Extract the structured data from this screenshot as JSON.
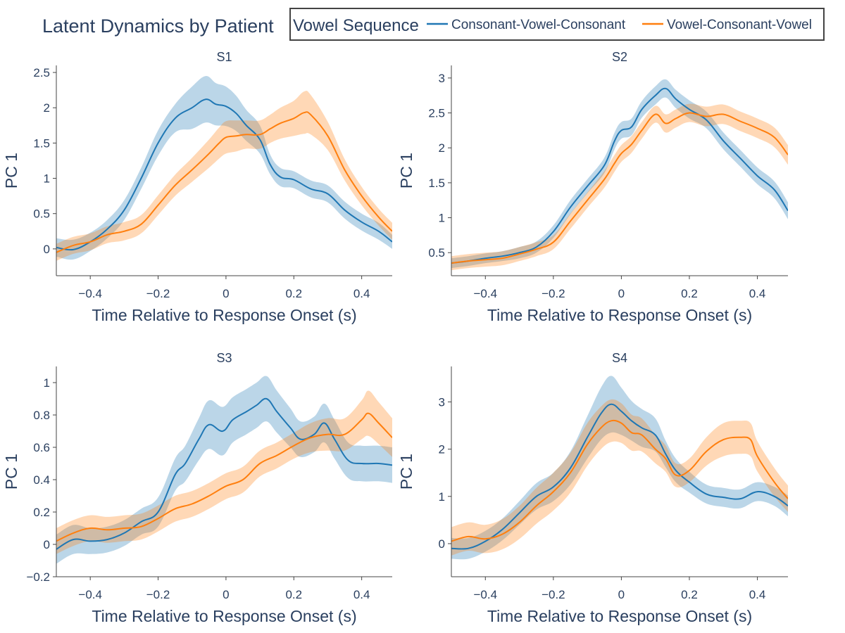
{
  "title": "Latent Dynamics by Patient",
  "legend": {
    "title": "Vowel Sequence",
    "placement": "top-right",
    "border": true
  },
  "colors": {
    "cvc": "#1f77b4",
    "vcv": "#ff7f0e",
    "cvc_band": "#1f77b4",
    "vcv_band": "#ff7f0e",
    "text": "#2a3f5f",
    "axis": "#444444"
  },
  "chart_data": [
    {
      "type": "line",
      "title": "S1",
      "xlabel": "Time Relative to Response Onset (s)",
      "ylabel": "PC 1",
      "xlim": [
        -0.5,
        0.49
      ],
      "ylim": [
        -0.38,
        2.6
      ],
      "xticks": [
        -0.4,
        -0.2,
        0,
        0.2,
        0.4
      ],
      "yticks": [
        0,
        0.5,
        1,
        1.5,
        2,
        2.5
      ],
      "grid": false,
      "series": [
        {
          "name": "Consonant-Vowel-Consonant",
          "x": [
            -0.5,
            -0.45,
            -0.4,
            -0.35,
            -0.3,
            -0.25,
            -0.2,
            -0.15,
            -0.1,
            -0.06,
            -0.03,
            0,
            0.03,
            0.06,
            0.1,
            0.13,
            0.16,
            0.2,
            0.25,
            0.3,
            0.35,
            0.4,
            0.45,
            0.49
          ],
          "y": [
            0.02,
            -0.01,
            0.1,
            0.28,
            0.55,
            1.0,
            1.5,
            1.85,
            2.0,
            2.12,
            2.05,
            2.02,
            1.92,
            1.75,
            1.55,
            1.2,
            1.02,
            0.98,
            0.85,
            0.78,
            0.55,
            0.38,
            0.25,
            0.1
          ],
          "band": [
            0.13,
            0.14,
            0.13,
            0.13,
            0.14,
            0.15,
            0.18,
            0.2,
            0.3,
            0.33,
            0.3,
            0.28,
            0.25,
            0.22,
            0.2,
            0.14,
            0.13,
            0.12,
            0.12,
            0.12,
            0.12,
            0.12,
            0.12,
            0.1
          ]
        },
        {
          "name": "Vowel-Consonant-Vowel",
          "x": [
            -0.5,
            -0.45,
            -0.4,
            -0.35,
            -0.3,
            -0.25,
            -0.2,
            -0.15,
            -0.1,
            -0.05,
            -0.02,
            0,
            0.03,
            0.06,
            0.1,
            0.13,
            0.16,
            0.2,
            0.23,
            0.25,
            0.3,
            0.35,
            0.4,
            0.45,
            0.49
          ],
          "y": [
            -0.05,
            0.05,
            0.1,
            0.2,
            0.25,
            0.35,
            0.62,
            0.9,
            1.12,
            1.35,
            1.5,
            1.58,
            1.6,
            1.62,
            1.62,
            1.7,
            1.78,
            1.85,
            1.93,
            1.9,
            1.6,
            1.12,
            0.75,
            0.45,
            0.25
          ],
          "band": [
            0.12,
            0.12,
            0.12,
            0.12,
            0.13,
            0.13,
            0.14,
            0.15,
            0.17,
            0.2,
            0.22,
            0.23,
            0.22,
            0.2,
            0.2,
            0.2,
            0.22,
            0.25,
            0.3,
            0.28,
            0.2,
            0.15,
            0.13,
            0.12,
            0.12
          ]
        }
      ]
    },
    {
      "type": "line",
      "title": "S2",
      "xlabel": "Time Relative to Response Onset (s)",
      "ylabel": "PC 1",
      "xlim": [
        -0.5,
        0.49
      ],
      "ylim": [
        0.17,
        3.18
      ],
      "xticks": [
        -0.4,
        -0.2,
        0,
        0.2,
        0.4
      ],
      "yticks": [
        0.5,
        1,
        1.5,
        2,
        2.5,
        3
      ],
      "grid": false,
      "series": [
        {
          "name": "Consonant-Vowel-Consonant",
          "x": [
            -0.5,
            -0.45,
            -0.4,
            -0.35,
            -0.3,
            -0.25,
            -0.2,
            -0.15,
            -0.1,
            -0.05,
            -0.02,
            0,
            0.03,
            0.06,
            0.1,
            0.13,
            0.16,
            0.2,
            0.25,
            0.3,
            0.35,
            0.4,
            0.45,
            0.49
          ],
          "y": [
            0.35,
            0.38,
            0.42,
            0.45,
            0.5,
            0.58,
            0.8,
            1.15,
            1.45,
            1.75,
            2.1,
            2.25,
            2.3,
            2.55,
            2.75,
            2.85,
            2.7,
            2.55,
            2.4,
            2.1,
            1.85,
            1.6,
            1.4,
            1.1
          ],
          "band": [
            0.07,
            0.07,
            0.07,
            0.07,
            0.08,
            0.08,
            0.09,
            0.1,
            0.1,
            0.11,
            0.12,
            0.12,
            0.12,
            0.12,
            0.13,
            0.13,
            0.13,
            0.13,
            0.12,
            0.12,
            0.12,
            0.12,
            0.12,
            0.12
          ]
        },
        {
          "name": "Vowel-Consonant-Vowel",
          "x": [
            -0.5,
            -0.45,
            -0.4,
            -0.35,
            -0.3,
            -0.25,
            -0.2,
            -0.15,
            -0.1,
            -0.05,
            -0.02,
            0,
            0.03,
            0.06,
            0.1,
            0.13,
            0.16,
            0.2,
            0.25,
            0.3,
            0.35,
            0.4,
            0.45,
            0.49
          ],
          "y": [
            0.35,
            0.38,
            0.4,
            0.42,
            0.48,
            0.55,
            0.65,
            0.95,
            1.25,
            1.55,
            1.78,
            1.92,
            2.05,
            2.25,
            2.48,
            2.35,
            2.42,
            2.5,
            2.45,
            2.48,
            2.38,
            2.28,
            2.15,
            1.9
          ],
          "band": [
            0.1,
            0.1,
            0.1,
            0.1,
            0.1,
            0.1,
            0.1,
            0.11,
            0.11,
            0.12,
            0.12,
            0.12,
            0.12,
            0.12,
            0.12,
            0.13,
            0.13,
            0.13,
            0.14,
            0.14,
            0.14,
            0.14,
            0.14,
            0.14
          ]
        }
      ]
    },
    {
      "type": "line",
      "title": "S3",
      "xlabel": "Time Relative to Response Onset (s)",
      "ylabel": "PC 1",
      "xlim": [
        -0.5,
        0.49
      ],
      "ylim": [
        -0.2,
        1.1
      ],
      "xticks": [
        -0.4,
        -0.2,
        0,
        0.2,
        0.4
      ],
      "yticks": [
        -0.2,
        0,
        0.2,
        0.4,
        0.6,
        0.8,
        1
      ],
      "grid": false,
      "series": [
        {
          "name": "Consonant-Vowel-Consonant",
          "x": [
            -0.5,
            -0.45,
            -0.4,
            -0.35,
            -0.3,
            -0.25,
            -0.2,
            -0.15,
            -0.12,
            -0.08,
            -0.05,
            -0.01,
            0.02,
            0.06,
            0.09,
            0.12,
            0.15,
            0.19,
            0.22,
            0.26,
            0.29,
            0.32,
            0.36,
            0.4,
            0.45,
            0.49
          ],
          "y": [
            -0.03,
            0.03,
            0.02,
            0.03,
            0.07,
            0.14,
            0.2,
            0.43,
            0.5,
            0.65,
            0.74,
            0.7,
            0.77,
            0.82,
            0.86,
            0.9,
            0.82,
            0.72,
            0.65,
            0.68,
            0.75,
            0.65,
            0.52,
            0.5,
            0.5,
            0.49
          ],
          "band": [
            0.09,
            0.09,
            0.08,
            0.08,
            0.08,
            0.08,
            0.09,
            0.1,
            0.11,
            0.13,
            0.15,
            0.15,
            0.14,
            0.14,
            0.14,
            0.14,
            0.13,
            0.12,
            0.11,
            0.11,
            0.12,
            0.12,
            0.11,
            0.11,
            0.11,
            0.11
          ]
        },
        {
          "name": "Vowel-Consonant-Vowel",
          "x": [
            -0.5,
            -0.45,
            -0.4,
            -0.35,
            -0.3,
            -0.25,
            -0.2,
            -0.15,
            -0.1,
            -0.05,
            0,
            0.05,
            0.1,
            0.15,
            0.2,
            0.25,
            0.3,
            0.35,
            0.4,
            0.42,
            0.45,
            0.49
          ],
          "y": [
            0.02,
            0.07,
            0.1,
            0.09,
            0.1,
            0.11,
            0.16,
            0.22,
            0.25,
            0.3,
            0.36,
            0.4,
            0.5,
            0.55,
            0.61,
            0.66,
            0.68,
            0.68,
            0.77,
            0.81,
            0.75,
            0.66
          ],
          "band": [
            0.08,
            0.08,
            0.08,
            0.08,
            0.08,
            0.08,
            0.08,
            0.08,
            0.08,
            0.08,
            0.08,
            0.08,
            0.08,
            0.08,
            0.08,
            0.09,
            0.1,
            0.1,
            0.12,
            0.14,
            0.13,
            0.12
          ]
        }
      ]
    },
    {
      "type": "line",
      "title": "S4",
      "xlabel": "Time Relative to Response Onset (s)",
      "ylabel": "PC 1",
      "xlim": [
        -0.5,
        0.49
      ],
      "ylim": [
        -0.7,
        3.75
      ],
      "xticks": [
        -0.4,
        -0.2,
        0,
        0.2,
        0.4
      ],
      "yticks": [
        0,
        1,
        2,
        3
      ],
      "grid": false,
      "series": [
        {
          "name": "Consonant-Vowel-Consonant",
          "x": [
            -0.5,
            -0.45,
            -0.4,
            -0.35,
            -0.3,
            -0.25,
            -0.2,
            -0.15,
            -0.1,
            -0.06,
            -0.03,
            0,
            0.03,
            0.06,
            0.1,
            0.13,
            0.16,
            0.2,
            0.25,
            0.3,
            0.35,
            0.4,
            0.45,
            0.49
          ],
          "y": [
            -0.1,
            -0.1,
            0.05,
            0.3,
            0.65,
            1.0,
            1.2,
            1.6,
            2.25,
            2.75,
            2.95,
            2.8,
            2.6,
            2.45,
            2.3,
            1.9,
            1.55,
            1.3,
            1.05,
            0.98,
            0.95,
            1.1,
            1.0,
            0.8
          ],
          "band": [
            0.22,
            0.22,
            0.22,
            0.23,
            0.25,
            0.28,
            0.3,
            0.35,
            0.45,
            0.55,
            0.6,
            0.5,
            0.42,
            0.4,
            0.35,
            0.28,
            0.25,
            0.22,
            0.2,
            0.2,
            0.2,
            0.2,
            0.2,
            0.22
          ]
        },
        {
          "name": "Vowel-Consonant-Vowel",
          "x": [
            -0.5,
            -0.45,
            -0.4,
            -0.35,
            -0.3,
            -0.25,
            -0.2,
            -0.15,
            -0.1,
            -0.06,
            -0.03,
            0,
            0.03,
            0.06,
            0.1,
            0.13,
            0.16,
            0.2,
            0.25,
            0.3,
            0.35,
            0.38,
            0.4,
            0.45,
            0.49
          ],
          "y": [
            0.05,
            0.15,
            0.1,
            0.2,
            0.45,
            0.8,
            1.1,
            1.5,
            2.1,
            2.45,
            2.6,
            2.55,
            2.35,
            2.3,
            2.0,
            1.8,
            1.45,
            1.55,
            1.95,
            2.2,
            2.25,
            2.2,
            1.85,
            1.3,
            0.95
          ],
          "band": [
            0.3,
            0.3,
            0.3,
            0.32,
            0.35,
            0.38,
            0.4,
            0.42,
            0.45,
            0.45,
            0.45,
            0.42,
            0.38,
            0.35,
            0.3,
            0.28,
            0.25,
            0.25,
            0.3,
            0.35,
            0.35,
            0.35,
            0.32,
            0.3,
            0.28
          ]
        }
      ]
    }
  ]
}
